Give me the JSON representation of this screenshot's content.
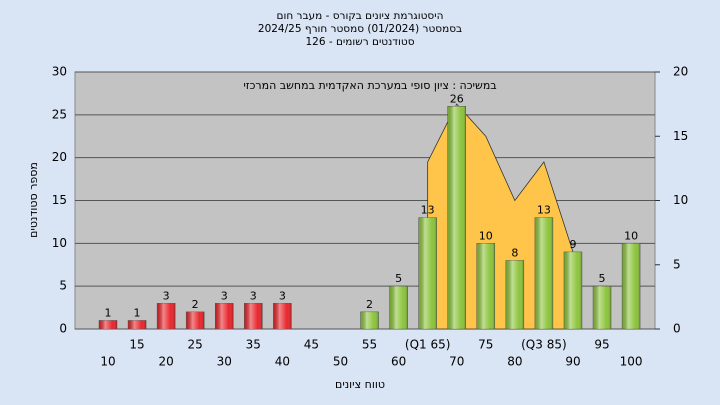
{
  "chart_data": {
    "type": "bar",
    "title": "היסטוגרמת ציונים בקורס - מעבר חום",
    "subtitle": "בסמסטר  (01/2024)  סמסטר חורף 2024/25",
    "subtitle2": "סטודנטים רשומים - 126",
    "annotation": "במשיכה : ציון סופי במערכת האקדמית במחשב המרכזי",
    "xlabel": "טווח ציונים",
    "ylabel": "מספר סטודנטים",
    "categories": [
      "10",
      "15",
      "20",
      "25",
      "30",
      "35",
      "40",
      "45",
      "50",
      "55",
      "60",
      "(Q1 65)",
      "70",
      "75",
      "80",
      "(Q3 85)",
      "90",
      "95",
      "100"
    ],
    "values": [
      1,
      1,
      3,
      2,
      3,
      3,
      3,
      null,
      null,
      2,
      5,
      13,
      26,
      10,
      8,
      13,
      9,
      5,
      10
    ],
    "bar_colors": [
      "#e8262c",
      "#e8262c",
      "#e8262c",
      "#e8262c",
      "#e8262c",
      "#e8262c",
      "#e8262c",
      "#e8262c",
      "#e8262c",
      "#8cc43c",
      "#8cc43c",
      "#8cc43c",
      "#8cc43c",
      "#8cc43c",
      "#8cc43c",
      "#8cc43c",
      "#8cc43c",
      "#8cc43c",
      "#8cc43c"
    ],
    "area": {
      "axis": "y2",
      "color": "#ffc54a",
      "values": [
        null,
        null,
        null,
        null,
        null,
        null,
        null,
        null,
        null,
        null,
        null,
        13,
        17.5,
        15,
        10,
        13,
        6,
        null,
        null
      ]
    },
    "ylim": [
      0,
      30
    ],
    "yticks": [
      0,
      5,
      10,
      15,
      20,
      25,
      30
    ],
    "y2lim": [
      0,
      20
    ],
    "y2ticks": [
      0,
      5,
      10,
      15,
      20
    ],
    "grid": true
  }
}
